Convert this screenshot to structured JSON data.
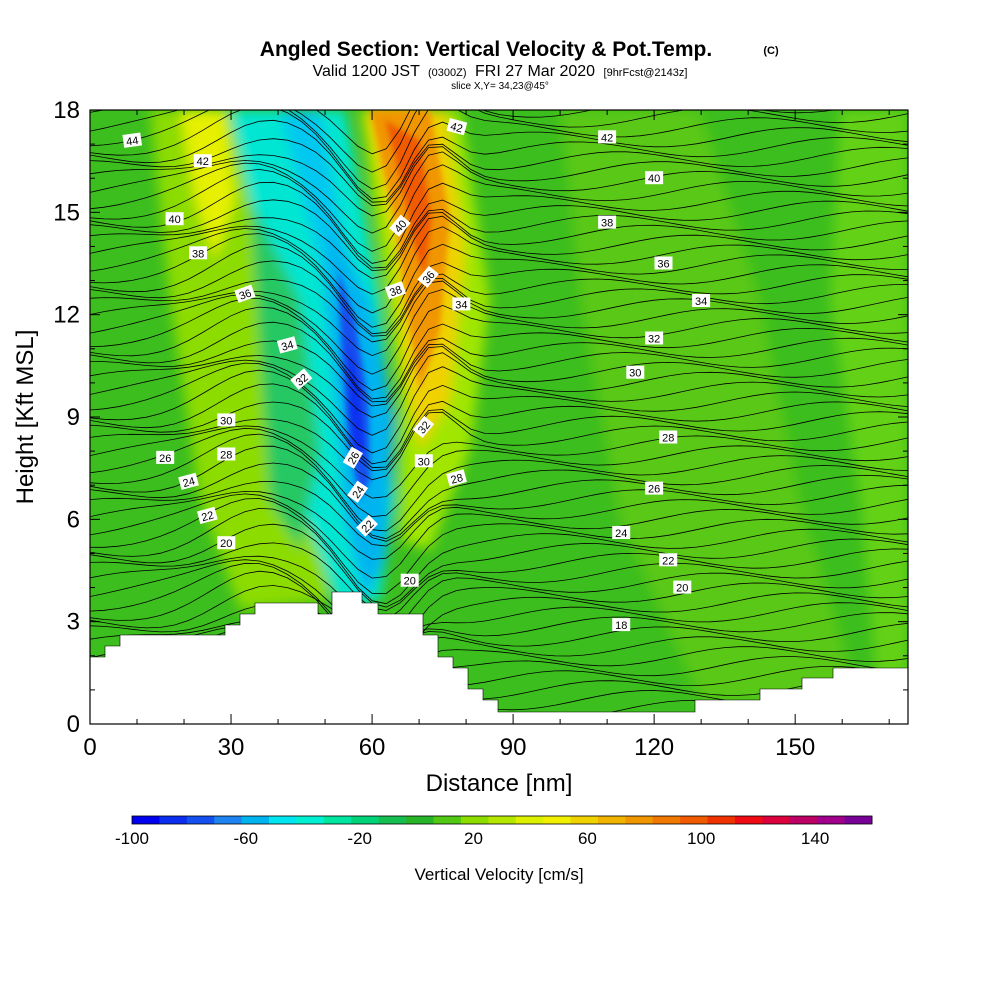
{
  "chart_data": {
    "type": "heatmap",
    "title": "Angled Section: Vertical Velocity & Pot.Temp.",
    "title_mark": "(C)",
    "subtitle_main": "Valid 1200 JST",
    "subtitle_utc": "(0300Z)",
    "subtitle_date": "FRI 27 Mar 2020",
    "subtitle_fcst": "[9hrFcst@2143z]",
    "slice": "slice X,Y= 34,23@45°",
    "xlabel": "Distance [nm]",
    "ylabel": "Height [Kft MSL]",
    "xlim": [
      0,
      174
    ],
    "ylim": [
      0,
      18
    ],
    "x_ticks": [
      "0",
      "30",
      "60",
      "90",
      "120",
      "150"
    ],
    "y_ticks": [
      "0",
      "3",
      "6",
      "9",
      "12",
      "15",
      "18"
    ],
    "colorbar": {
      "label": "Vertical Velocity [cm/s]",
      "tick_labels": [
        "-100",
        "-60",
        "-20",
        "20",
        "60",
        "100",
        "140"
      ],
      "range": [
        -100,
        160
      ],
      "colors": [
        "#0000f0",
        "#0a2df0",
        "#1450f0",
        "#1e82f0",
        "#00b4f0",
        "#00e6f0",
        "#00f0d2",
        "#00e6a0",
        "#00d278",
        "#14be50",
        "#28b428",
        "#50c814",
        "#8cdc00",
        "#b4e600",
        "#dcf000",
        "#f0f000",
        "#f0d200",
        "#f0b400",
        "#f09600",
        "#f07800",
        "#f05a00",
        "#f03200",
        "#f00a14",
        "#dc003c",
        "#be0064",
        "#a0008c",
        "#780096"
      ]
    },
    "contour_labels": [
      {
        "value": "44",
        "x": 9,
        "y": 17.1,
        "rot": -8
      },
      {
        "value": "42",
        "x": 24,
        "y": 16.5,
        "rot": 0
      },
      {
        "value": "40",
        "x": 18,
        "y": 14.8,
        "rot": 0
      },
      {
        "value": "38",
        "x": 23,
        "y": 13.8,
        "rot": 0
      },
      {
        "value": "36",
        "x": 33,
        "y": 12.6,
        "rot": -20
      },
      {
        "value": "34",
        "x": 42,
        "y": 11.1,
        "rot": -15
      },
      {
        "value": "32",
        "x": 45,
        "y": 10.1,
        "rot": -40
      },
      {
        "value": "30",
        "x": 29,
        "y": 8.9,
        "rot": 0
      },
      {
        "value": "28",
        "x": 29,
        "y": 7.9,
        "rot": 0
      },
      {
        "value": "26",
        "x": 16,
        "y": 7.8,
        "rot": 0
      },
      {
        "value": "24",
        "x": 21,
        "y": 7.1,
        "rot": -15
      },
      {
        "value": "22",
        "x": 25,
        "y": 6.1,
        "rot": -15
      },
      {
        "value": "20",
        "x": 29,
        "y": 5.3,
        "rot": 0
      },
      {
        "value": "26",
        "x": 56,
        "y": 7.8,
        "rot": -60
      },
      {
        "value": "24",
        "x": 57,
        "y": 6.8,
        "rot": -55
      },
      {
        "value": "22",
        "x": 59,
        "y": 5.8,
        "rot": -45
      },
      {
        "value": "20",
        "x": 68,
        "y": 4.2,
        "rot": 0
      },
      {
        "value": "42",
        "x": 78,
        "y": 17.5,
        "rot": 15
      },
      {
        "value": "40",
        "x": 66,
        "y": 14.6,
        "rot": -50
      },
      {
        "value": "38",
        "x": 65,
        "y": 12.7,
        "rot": -20
      },
      {
        "value": "36",
        "x": 72,
        "y": 13.1,
        "rot": -50
      },
      {
        "value": "34",
        "x": 79,
        "y": 12.3,
        "rot": 0
      },
      {
        "value": "32",
        "x": 71,
        "y": 8.7,
        "rot": -50
      },
      {
        "value": "30",
        "x": 71,
        "y": 7.7,
        "rot": 0
      },
      {
        "value": "28",
        "x": 78,
        "y": 7.2,
        "rot": -15
      },
      {
        "value": "42",
        "x": 110,
        "y": 17.2,
        "rot": 0
      },
      {
        "value": "40",
        "x": 120,
        "y": 16.0,
        "rot": 0
      },
      {
        "value": "38",
        "x": 110,
        "y": 14.7,
        "rot": 0
      },
      {
        "value": "36",
        "x": 122,
        "y": 13.5,
        "rot": 0
      },
      {
        "value": "34",
        "x": 130,
        "y": 12.4,
        "rot": 0
      },
      {
        "value": "32",
        "x": 120,
        "y": 11.3,
        "rot": 0
      },
      {
        "value": "30",
        "x": 116,
        "y": 10.3,
        "rot": 0
      },
      {
        "value": "28",
        "x": 123,
        "y": 8.4,
        "rot": 0
      },
      {
        "value": "26",
        "x": 120,
        "y": 6.9,
        "rot": 0
      },
      {
        "value": "24",
        "x": 113,
        "y": 5.6,
        "rot": 0
      },
      {
        "value": "22",
        "x": 123,
        "y": 4.8,
        "rot": 0
      },
      {
        "value": "20",
        "x": 126,
        "y": 4.0,
        "rot": 0
      },
      {
        "value": "18",
        "x": 113,
        "y": 2.9,
        "rot": 0
      }
    ]
  }
}
